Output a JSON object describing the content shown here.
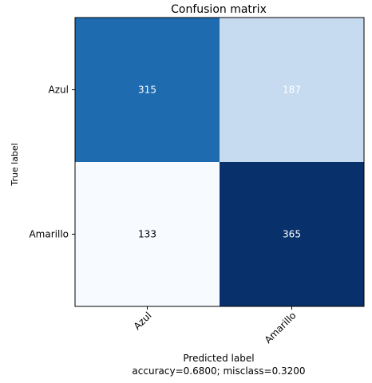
{
  "chart_data": {
    "type": "heatmap",
    "title": "Confusion matrix",
    "ylabel": "True label",
    "xlabel": "Predicted label",
    "subtitle": "accuracy=0.6800; misclass=0.3200",
    "row_labels": [
      "Azul",
      "Amarillo"
    ],
    "col_labels": [
      "Azul",
      "Amarillo"
    ],
    "values": [
      [
        315,
        187
      ],
      [
        133,
        365
      ]
    ],
    "colormap": "Blues",
    "cell_colors": [
      [
        "#1e6bb0",
        "#c6dbef"
      ],
      [
        "#f7fbff",
        "#08306b"
      ]
    ],
    "text_colors": [
      [
        "#ffffff",
        "#ffffff"
      ],
      [
        "#000000",
        "#ffffff"
      ]
    ],
    "grid": false,
    "legend": false
  }
}
